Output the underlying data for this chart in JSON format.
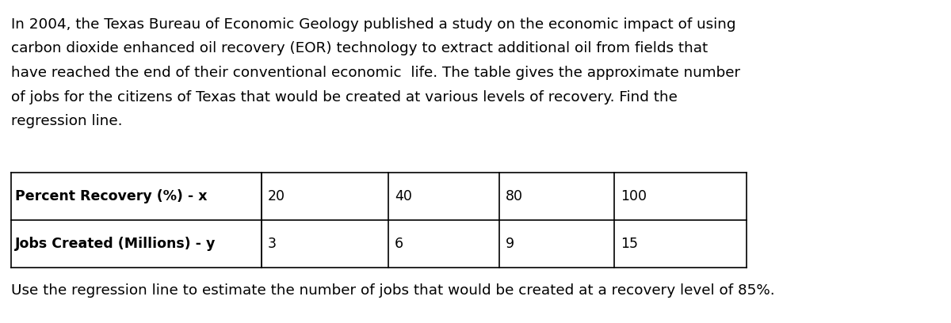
{
  "para_lines": [
    "In 2004, the Texas Bureau of Economic Geology published a study on the economic impact of using",
    "carbon dioxide enhanced oil recovery (EOR) technology to extract additional oil from fields that",
    "have reached the end of their conventional economic  life. The table gives the approximate number",
    "of jobs for the citizens of Texas that would be created at various levels of recovery. Find the",
    "regression line."
  ],
  "footer": "Use the regression line to estimate the number of jobs that would be created at a recovery level of 85%.",
  "table": {
    "row1_label": "Percent Recovery (%) - x",
    "row2_label": "Jobs Created (Millions) - y",
    "col_values_row1": [
      "20",
      "40",
      "80",
      "100"
    ],
    "col_values_row2": [
      "3",
      "6",
      "9",
      "15"
    ]
  },
  "bg_color": "#ffffff",
  "text_color": "#000000",
  "font_size_para": 13.2,
  "font_size_table": 12.5,
  "font_size_footer": 13.2
}
